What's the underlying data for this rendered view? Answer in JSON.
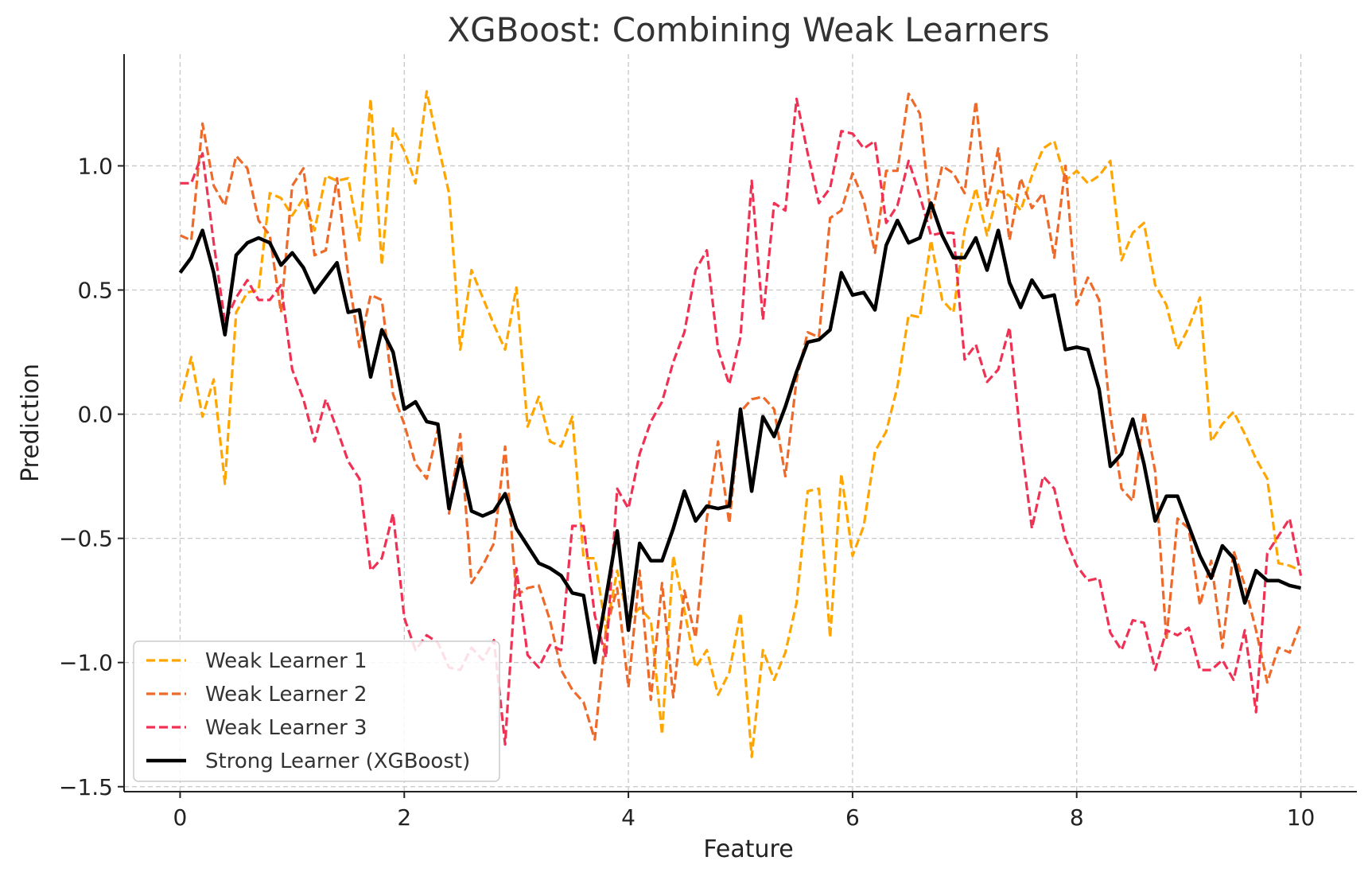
{
  "chart_data": {
    "type": "line",
    "title": "XGBoost: Combining Weak Learners",
    "xlabel": "Feature",
    "ylabel": "Prediction",
    "xlim": [
      -0.5,
      10.5
    ],
    "ylim": [
      -1.52,
      1.45
    ],
    "xticks": [
      0,
      2,
      4,
      6,
      8,
      10
    ],
    "xtick_labels": [
      "0",
      "2",
      "4",
      "6",
      "8",
      "10"
    ],
    "yticks": [
      -1.5,
      -1.0,
      -0.5,
      0.0,
      0.5,
      1.0
    ],
    "ytick_labels": [
      "−1.5",
      "−1.0",
      "−0.5",
      "0.0",
      "0.5",
      "1.0"
    ],
    "grid": true,
    "legend_position": "lower-left",
    "x_start": 0,
    "x_end": 10,
    "series": [
      {
        "name": "Weak Learner 1",
        "color": "#FFA500",
        "style": "dashed",
        "values": [
          0.05,
          0.23,
          -0.01,
          0.14,
          -0.28,
          0.41,
          0.49,
          0.5,
          0.89,
          0.87,
          0.8,
          0.87,
          0.74,
          0.96,
          0.94,
          0.95,
          0.7,
          1.27,
          0.6,
          1.15,
          1.06,
          0.93,
          1.3,
          1.09,
          0.89,
          0.26,
          0.58,
          0.47,
          0.36,
          0.26,
          0.51,
          -0.05,
          0.07,
          -0.11,
          -0.13,
          -0.01,
          -0.58,
          -0.58,
          -0.87,
          -0.63,
          -0.83,
          -0.78,
          -0.83,
          -1.29,
          -0.57,
          -0.79,
          -1.02,
          -0.95,
          -1.13,
          -1.04,
          -0.8,
          -1.38,
          -0.95,
          -1.07,
          -0.96,
          -0.76,
          -0.31,
          -0.3,
          -0.9,
          -0.24,
          -0.57,
          -0.45,
          -0.15,
          -0.07,
          0.11,
          0.4,
          0.39,
          0.7,
          0.46,
          0.41,
          0.74,
          0.91,
          0.72,
          0.9,
          0.88,
          0.82,
          0.96,
          1.07,
          1.1,
          0.94,
          0.98,
          0.93,
          0.96,
          1.02,
          0.62,
          0.73,
          0.77,
          0.52,
          0.44,
          0.26,
          0.35,
          0.47,
          -0.11,
          -0.04,
          0.01,
          -0.08,
          -0.18,
          -0.26,
          -0.6,
          -0.61,
          -0.63
        ]
      },
      {
        "name": "Weak Learner 2",
        "color": "#EE6A2A",
        "style": "dashed",
        "values": [
          0.72,
          0.7,
          1.17,
          0.92,
          0.84,
          1.04,
          0.99,
          0.78,
          0.72,
          0.41,
          0.92,
          0.99,
          0.64,
          0.66,
          0.95,
          0.56,
          0.27,
          0.48,
          0.46,
          0.08,
          -0.04,
          -0.2,
          -0.26,
          -0.06,
          -0.4,
          -0.08,
          -0.68,
          -0.61,
          -0.52,
          -0.13,
          -0.73,
          -0.7,
          -0.69,
          -0.83,
          -1.03,
          -1.11,
          -1.16,
          -1.31,
          -0.87,
          -0.7,
          -1.1,
          -0.63,
          -1.15,
          -0.68,
          -1.14,
          -0.71,
          -0.9,
          -0.42,
          -0.11,
          -0.44,
          0.01,
          0.06,
          0.07,
          0.02,
          -0.25,
          0.14,
          0.33,
          0.31,
          0.79,
          0.82,
          0.97,
          0.86,
          0.65,
          0.98,
          0.98,
          1.29,
          1.21,
          0.79,
          1.0,
          0.97,
          0.89,
          1.26,
          0.84,
          1.07,
          0.7,
          0.95,
          0.83,
          0.89,
          0.63,
          1.0,
          0.44,
          0.55,
          0.46,
          0.0,
          -0.3,
          -0.35,
          0.01,
          -0.23,
          -0.91,
          -0.42,
          -0.46,
          -0.77,
          -0.59,
          -0.94,
          -0.55,
          -0.69,
          -0.87,
          -1.08,
          -0.94,
          -0.96,
          -0.84
        ]
      },
      {
        "name": "Weak Learner 3",
        "color": "#EF3154",
        "style": "dashed",
        "values": [
          0.93,
          0.93,
          1.05,
          0.69,
          0.37,
          0.47,
          0.54,
          0.46,
          0.46,
          0.52,
          0.18,
          0.06,
          -0.11,
          0.06,
          -0.06,
          -0.19,
          -0.26,
          -0.63,
          -0.58,
          -0.4,
          -0.82,
          -0.95,
          -0.89,
          -0.92,
          -1.02,
          -1.03,
          -0.94,
          -0.99,
          -0.91,
          -1.33,
          -0.62,
          -0.97,
          -1.02,
          -0.93,
          -0.95,
          -0.45,
          -0.45,
          -0.81,
          -0.98,
          -0.3,
          -0.38,
          -0.16,
          -0.03,
          0.05,
          0.21,
          0.33,
          0.58,
          0.66,
          0.26,
          0.12,
          0.31,
          0.94,
          0.38,
          0.85,
          0.82,
          1.27,
          1.05,
          0.85,
          0.91,
          1.14,
          1.13,
          1.07,
          1.1,
          0.77,
          0.84,
          1.02,
          0.88,
          0.72,
          0.73,
          0.73,
          0.22,
          0.28,
          0.13,
          0.18,
          0.35,
          -0.1,
          -0.46,
          -0.25,
          -0.3,
          -0.5,
          -0.61,
          -0.67,
          -0.66,
          -0.88,
          -0.95,
          -0.83,
          -0.84,
          -1.03,
          -0.87,
          -0.89,
          -0.86,
          -1.03,
          -1.03,
          -0.99,
          -1.07,
          -0.87,
          -1.2,
          -0.56,
          -0.49,
          -0.42,
          -0.65
        ]
      },
      {
        "name": "Strong Learner (XGBoost)",
        "color": "#000000",
        "style": "solid",
        "values": [
          0.57,
          0.63,
          0.74,
          0.57,
          0.32,
          0.64,
          0.69,
          0.71,
          0.69,
          0.6,
          0.65,
          0.59,
          0.49,
          0.55,
          0.61,
          0.41,
          0.42,
          0.15,
          0.34,
          0.25,
          0.02,
          0.05,
          -0.03,
          -0.04,
          -0.38,
          -0.18,
          -0.39,
          -0.41,
          -0.39,
          -0.32,
          -0.46,
          -0.53,
          -0.6,
          -0.62,
          -0.65,
          -0.72,
          -0.73,
          -1.0,
          -0.74,
          -0.47,
          -0.87,
          -0.52,
          -0.59,
          -0.59,
          -0.46,
          -0.31,
          -0.43,
          -0.37,
          -0.38,
          -0.37,
          0.02,
          -0.31,
          -0.01,
          -0.09,
          0.03,
          0.17,
          0.29,
          0.3,
          0.34,
          0.57,
          0.48,
          0.49,
          0.42,
          0.68,
          0.78,
          0.69,
          0.71,
          0.85,
          0.72,
          0.63,
          0.63,
          0.71,
          0.58,
          0.74,
          0.53,
          0.43,
          0.54,
          0.47,
          0.48,
          0.26,
          0.27,
          0.26,
          0.1,
          -0.21,
          -0.16,
          -0.02,
          -0.2,
          -0.43,
          -0.33,
          -0.33,
          -0.45,
          -0.57,
          -0.66,
          -0.53,
          -0.58,
          -0.76,
          -0.63,
          -0.67,
          -0.67,
          -0.69,
          -0.7
        ]
      }
    ]
  }
}
